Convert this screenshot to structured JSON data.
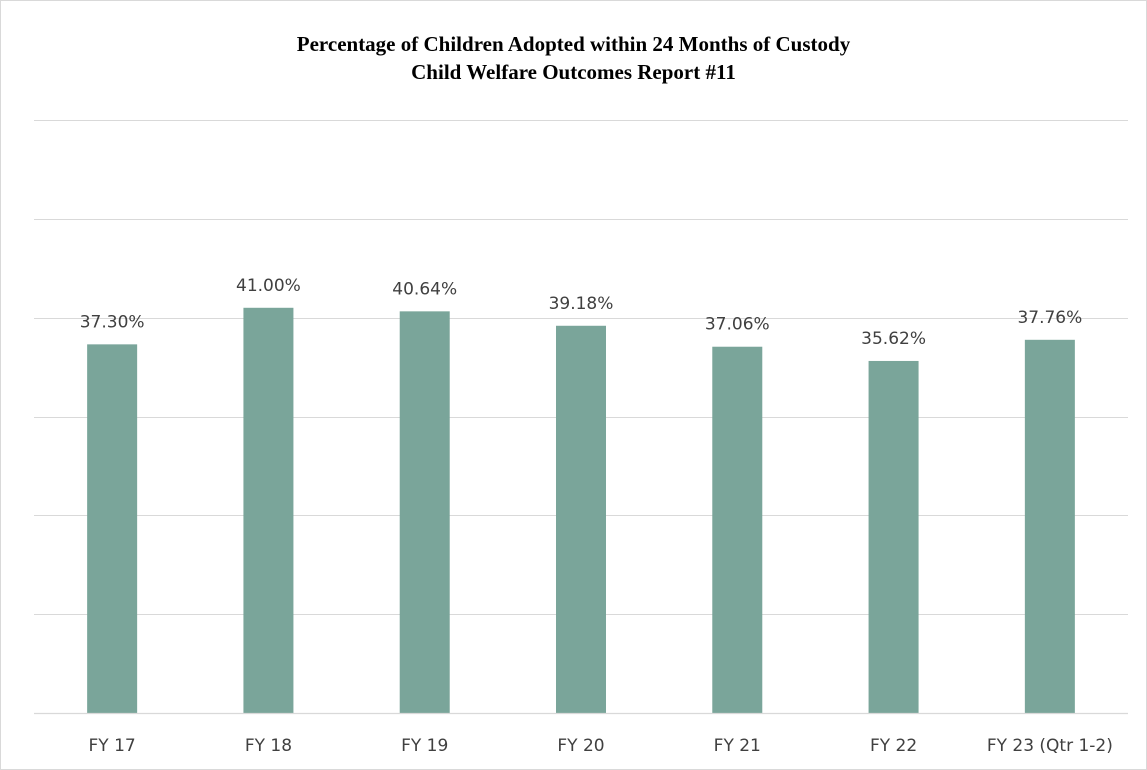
{
  "chart_data": {
    "type": "bar",
    "title": "Percentage of Children Adopted  within  24 Months  of Custody",
    "subtitle": "Child Welfare Outcomes  Report  #11",
    "categories": [
      "FY 17",
      "FY 18",
      "FY 19",
      "FY 20",
      "FY 21",
      "FY 22",
      "FY 23 (Qtr 1-2)"
    ],
    "values": [
      37.3,
      41.0,
      40.64,
      39.18,
      37.06,
      35.62,
      37.76
    ],
    "data_labels": [
      "37.30%",
      "41.00%",
      "40.64%",
      "39.18%",
      "37.06%",
      "35.62%",
      "37.76%"
    ],
    "xlabel": "",
    "ylabel": "",
    "unit": "%",
    "ylim": [
      0,
      60
    ],
    "gridline_step": 10,
    "grid": true,
    "legend": "none",
    "bar_color": "#7aa59a",
    "gridline_color": "#d9d9d9",
    "label_color": "#404040"
  }
}
